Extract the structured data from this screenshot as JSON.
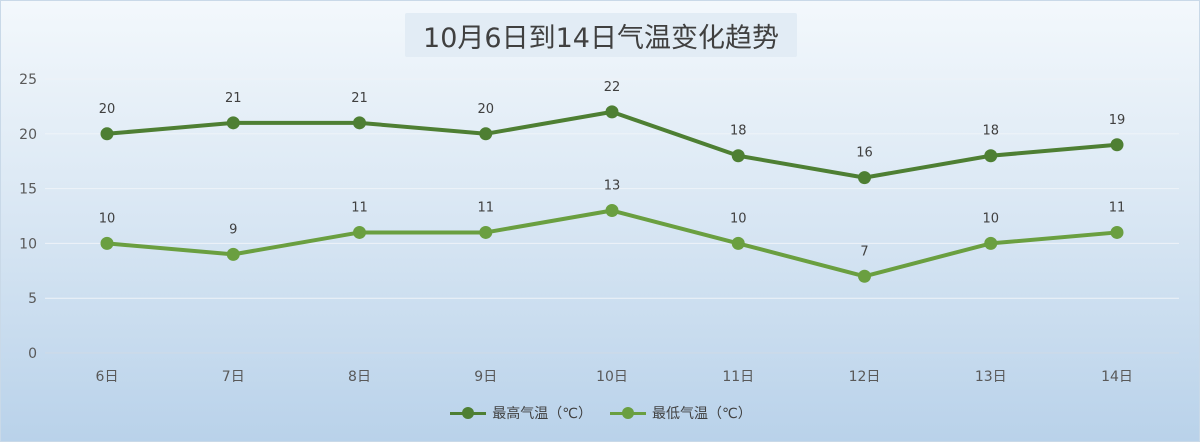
{
  "chart_data": {
    "type": "line",
    "title": "10月6日到14日气温变化趋势",
    "categories": [
      "6日",
      "7日",
      "8日",
      "9日",
      "10日",
      "11日",
      "12日",
      "13日",
      "14日"
    ],
    "series": [
      {
        "name": "最高气温（℃）",
        "values": [
          20,
          21,
          21,
          20,
          22,
          18,
          16,
          18,
          19
        ],
        "color": "#4e7f33"
      },
      {
        "name": "最低气温（℃）",
        "values": [
          10,
          9,
          11,
          11,
          13,
          10,
          7,
          10,
          11
        ],
        "color": "#6a9f40"
      }
    ],
    "ylim": [
      0,
      25
    ],
    "yticks": [
      0,
      5,
      10,
      15,
      20,
      25
    ],
    "xlabel": "",
    "ylabel": "",
    "grid": true,
    "legend": "bottom",
    "data_labels": true
  }
}
